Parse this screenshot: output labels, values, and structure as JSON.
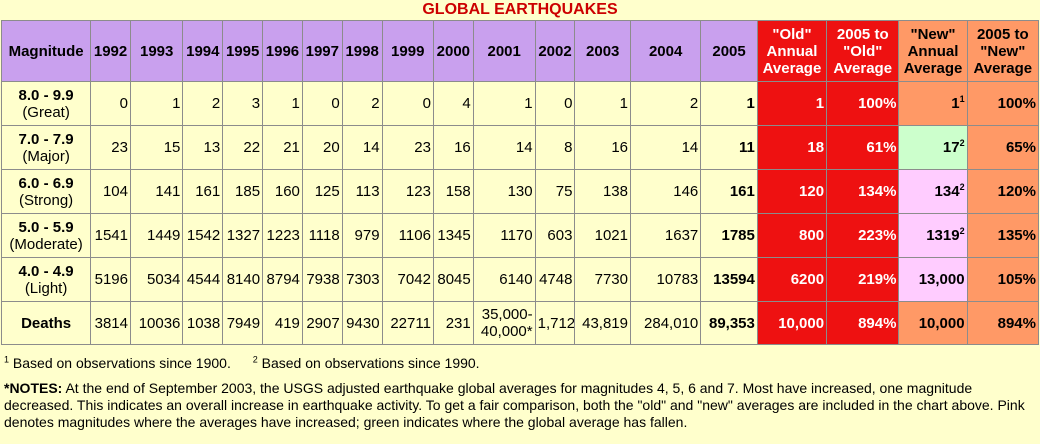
{
  "title": "GLOBAL EARTHQUAKES",
  "headers": {
    "magnitude": "Magnitude",
    "years": [
      "1992",
      "1993",
      "1994",
      "1995",
      "1996",
      "1997",
      "1998",
      "1999",
      "2000",
      "2001",
      "2002",
      "2003",
      "2004"
    ],
    "y2005": "2005",
    "old_avg": "\"Old\" Annual Average",
    "old_pct": "2005 to \"Old\" Average",
    "new_avg": "\"New\" Annual Average",
    "new_pct": "2005 to \"New\" Average"
  },
  "rows": [
    {
      "range": "8.0 - 9.9",
      "name": "(Great)",
      "values": [
        "0",
        "1",
        "2",
        "3",
        "1",
        "0",
        "2",
        "0",
        "4",
        "1",
        "0",
        "1",
        "2"
      ],
      "y2005": "1",
      "old_avg": "1",
      "old_pct": "100%",
      "new_avg": "1",
      "new_sup": "1",
      "new_pct": "100%",
      "new_color": "orange"
    },
    {
      "range": "7.0 - 7.9",
      "name": "(Major)",
      "values": [
        "23",
        "15",
        "13",
        "22",
        "21",
        "20",
        "14",
        "23",
        "16",
        "14",
        "8",
        "16",
        "14"
      ],
      "y2005": "11",
      "old_avg": "18",
      "old_pct": "61%",
      "new_avg": "17",
      "new_sup": "2",
      "new_pct": "65%",
      "new_color": "green"
    },
    {
      "range": "6.0 - 6.9",
      "name": "(Strong)",
      "values": [
        "104",
        "141",
        "161",
        "185",
        "160",
        "125",
        "113",
        "123",
        "158",
        "130",
        "75",
        "138",
        "146"
      ],
      "y2005": "161",
      "old_avg": "120",
      "old_pct": "134%",
      "new_avg": "134",
      "new_sup": "2",
      "new_pct": "120%",
      "new_color": "pink"
    },
    {
      "range": "5.0 - 5.9",
      "name": "(Moderate)",
      "values": [
        "1541",
        "1449",
        "1542",
        "1327",
        "1223",
        "1118",
        "979",
        "1106",
        "1345",
        "1170",
        "603",
        "1021",
        "1637"
      ],
      "y2005": "1785",
      "old_avg": "800",
      "old_pct": "223%",
      "new_avg": "1319",
      "new_sup": "2",
      "new_pct": "135%",
      "new_color": "pink"
    },
    {
      "range": "4.0 - 4.9",
      "name": "(Light)",
      "values": [
        "5196",
        "5034",
        "4544",
        "8140",
        "8794",
        "7938",
        "7303",
        "7042",
        "8045",
        "6140",
        "4748",
        "7730",
        "10783"
      ],
      "y2005": "13594",
      "old_avg": "6200",
      "old_pct": "219%",
      "new_avg": "13,000",
      "new_sup": "",
      "new_pct": "105%",
      "new_color": "pink"
    }
  ],
  "deaths": {
    "label": "Deaths",
    "values": [
      "3814",
      "10036",
      "1038",
      "7949",
      "419",
      "2907",
      "9430",
      "22711",
      "231",
      "35,000-40,000*",
      "1,712",
      "43,819",
      "284,010"
    ],
    "y2005": "89,353",
    "old_avg": "10,000",
    "old_pct": "894%",
    "new_avg": "10,000",
    "new_pct": "894%"
  },
  "footnotes": {
    "f1_sup": "1",
    "f1": "Based on observations since 1900.",
    "f2_sup": "2",
    "f2": "Based on observations since 1990."
  },
  "notes": {
    "label": "*NOTES:",
    "text": "At the end of September 2003, the USGS adjusted earthquake global averages for magnitudes 4, 5, 6 and 7. Most have increased, one magnitude decreased. This indicates an overall increase in earthquake activity. To get a fair comparison, both the \"old\" and \"new\" averages are included in the chart above. Pink denotes magnitudes where the averages have increased; green indicates where the global average has fallen."
  }
}
